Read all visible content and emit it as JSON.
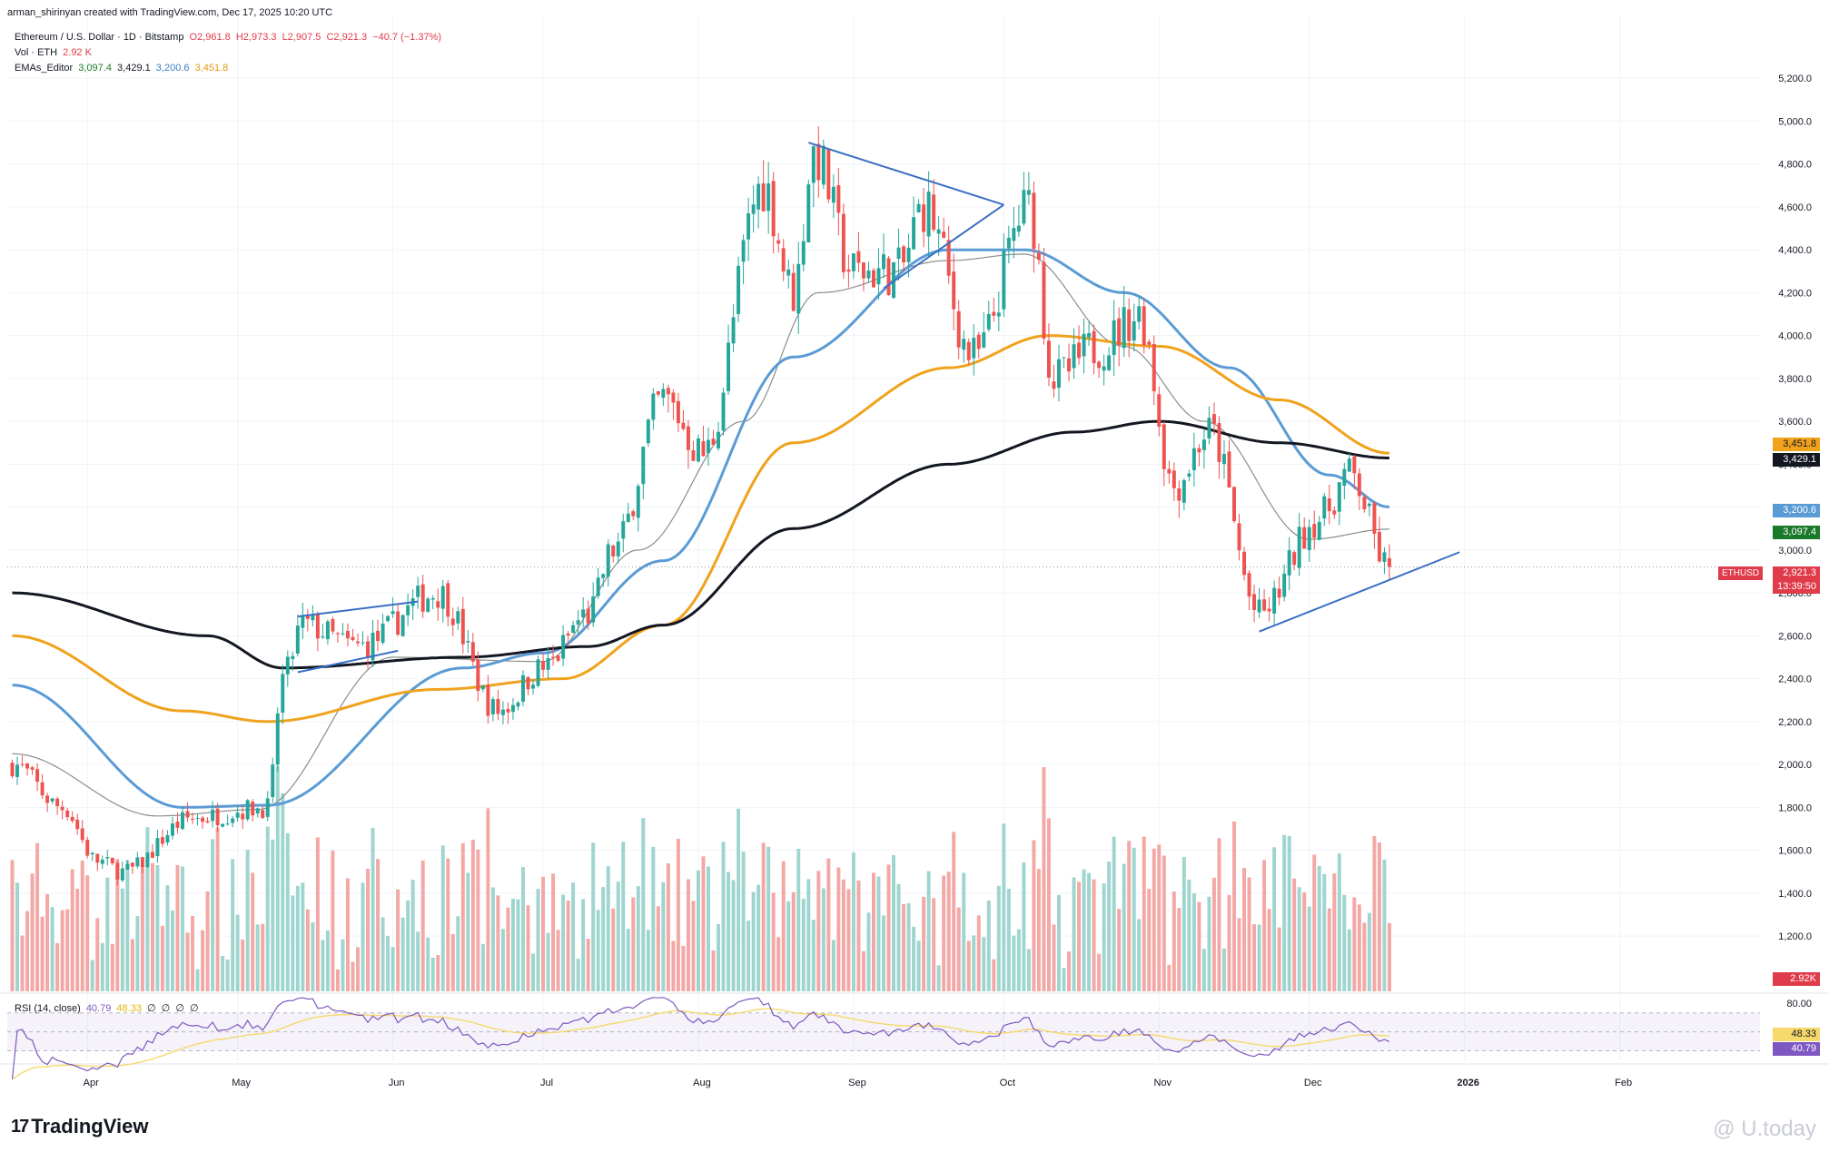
{
  "header": {
    "credit": "arman_shirinyan created with TradingView.com, Dec 17, 2025 10:20 UTC",
    "symbol": "Ethereum / U.S. Dollar · 1D · Bitstamp",
    "ohlc": {
      "open": "O2,961.8",
      "high": "H2,973.3",
      "low": "L2,907.5",
      "close": "C2,921.3",
      "change": "−40.7 (−1.37%)"
    },
    "volume_label": "Vol · ETH",
    "volume_value": "2.92 K",
    "ema_label": "EMAs_Editor",
    "ema_values": [
      "3,097.4",
      "3,429.1",
      "3,200.6",
      "3,451.8"
    ],
    "rsi_label": "RSI (14, close)",
    "rsi_values": [
      "40.79",
      "48.33",
      "∅",
      "∅",
      "∅",
      "∅"
    ]
  },
  "tags": {
    "ema100": "3,451.8",
    "ema200": "3,429.1",
    "ema50": "3,200.6",
    "ema20": "3,097.4",
    "symbol": "ETHUSD",
    "price": "2,921.3",
    "countdown": "13:39:50",
    "volume": "2.92K",
    "rsi_ma": "48.33",
    "rsi": "40.79"
  },
  "branding": {
    "logo": "TradingView",
    "watermark": "@ U.today"
  },
  "colors": {
    "up": "#26a69a",
    "down": "#ef5350",
    "up_vol": "#9fd5cf",
    "down_vol": "#f3a8a6",
    "ema20": "#8a8f8b",
    "ema50": "#5b9bd5",
    "ema100": "#f0a21c",
    "ema200": "#131722",
    "trend": "#3a6fc4",
    "rsi": "#7e57c2",
    "rsi_ma": "#f6d96b"
  },
  "chart_data": {
    "type": "candlestick",
    "y_axis_ticks": [
      "5,200.0",
      "5,000.0",
      "4,800.0",
      "4,600.0",
      "4,400.0",
      "4,200.0",
      "4,000.0",
      "3,800.0",
      "3,600.0",
      "3,400.0",
      "3,200.0",
      "3,000.0",
      "2,800.0",
      "2,600.0",
      "2,400.0",
      "2,200.0",
      "2,000.0",
      "1,800.0",
      "1,600.0",
      "1,400.0",
      "1,200.0"
    ],
    "x_axis_ticks": [
      "Apr",
      "May",
      "Jun",
      "Jul",
      "Aug",
      "Sep",
      "Oct",
      "Nov",
      "Dec",
      "2026",
      "Feb"
    ],
    "rsi_ticks": [
      "80.00"
    ],
    "price_path_anchors": [
      [
        "2025-03-17",
        2000
      ],
      [
        "2025-03-27",
        1800
      ],
      [
        "2025-04-03",
        1550
      ],
      [
        "2025-04-08",
        1500
      ],
      [
        "2025-04-22",
        1750
      ],
      [
        "2025-05-07",
        1800
      ],
      [
        "2025-05-10",
        2400
      ],
      [
        "2025-05-14",
        2650
      ],
      [
        "2025-05-25",
        2550
      ],
      [
        "2025-06-10",
        2800
      ],
      [
        "2025-06-22",
        2250
      ],
      [
        "2025-07-01",
        2450
      ],
      [
        "2025-07-10",
        2700
      ],
      [
        "2025-07-15",
        3000
      ],
      [
        "2025-07-25",
        3700
      ],
      [
        "2025-08-02",
        3450
      ],
      [
        "2025-08-14",
        4700
      ],
      [
        "2025-08-20",
        4200
      ],
      [
        "2025-08-24",
        4850
      ],
      [
        "2025-09-01",
        4300
      ],
      [
        "2025-09-10",
        4300
      ],
      [
        "2025-09-15",
        4600
      ],
      [
        "2025-09-25",
        3900
      ],
      [
        "2025-10-06",
        4600
      ],
      [
        "2025-10-11",
        3800
      ],
      [
        "2025-10-20",
        3950
      ],
      [
        "2025-10-28",
        4100
      ],
      [
        "2025-11-04",
        3300
      ],
      [
        "2025-11-11",
        3550
      ],
      [
        "2025-11-21",
        2700
      ],
      [
        "2025-12-03",
        3150
      ],
      [
        "2025-12-09",
        3350
      ],
      [
        "2025-12-17",
        2921
      ]
    ],
    "ema_anchors": {
      "ema20": [
        [
          "2025-03-17",
          2050
        ],
        [
          "2025-04-15",
          1760
        ],
        [
          "2025-05-05",
          1790
        ],
        [
          "2025-06-01",
          2500
        ],
        [
          "2025-07-01",
          2480
        ],
        [
          "2025-07-20",
          3000
        ],
        [
          "2025-08-10",
          3600
        ],
        [
          "2025-08-25",
          4200
        ],
        [
          "2025-09-20",
          4350
        ],
        [
          "2025-10-05",
          4380
        ],
        [
          "2025-10-25",
          3950
        ],
        [
          "2025-11-10",
          3600
        ],
        [
          "2025-12-01",
          3050
        ],
        [
          "2025-12-17",
          3097.4
        ]
      ],
      "ema50": [
        [
          "2025-03-17",
          2370
        ],
        [
          "2025-04-20",
          1800
        ],
        [
          "2025-05-07",
          1810
        ],
        [
          "2025-06-15",
          2450
        ],
        [
          "2025-07-01",
          2520
        ],
        [
          "2025-07-25",
          2950
        ],
        [
          "2025-08-20",
          3900
        ],
        [
          "2025-09-20",
          4400
        ],
        [
          "2025-10-05",
          4400
        ],
        [
          "2025-10-25",
          4200
        ],
        [
          "2025-11-15",
          3850
        ],
        [
          "2025-12-05",
          3350
        ],
        [
          "2025-12-17",
          3200.6
        ]
      ],
      "ema100": [
        [
          "2025-03-17",
          2600
        ],
        [
          "2025-04-20",
          2250
        ],
        [
          "2025-05-07",
          2200
        ],
        [
          "2025-06-10",
          2350
        ],
        [
          "2025-07-05",
          2400
        ],
        [
          "2025-07-25",
          2650
        ],
        [
          "2025-08-20",
          3500
        ],
        [
          "2025-09-20",
          3850
        ],
        [
          "2025-10-10",
          4000
        ],
        [
          "2025-11-01",
          3950
        ],
        [
          "2025-11-25",
          3700
        ],
        [
          "2025-12-17",
          3451.8
        ]
      ],
      "ema200": [
        [
          "2025-03-17",
          2800
        ],
        [
          "2025-04-25",
          2600
        ],
        [
          "2025-05-10",
          2450
        ],
        [
          "2025-06-15",
          2500
        ],
        [
          "2025-07-10",
          2550
        ],
        [
          "2025-07-25",
          2650
        ],
        [
          "2025-08-20",
          3100
        ],
        [
          "2025-09-20",
          3400
        ],
        [
          "2025-10-15",
          3550
        ],
        [
          "2025-11-01",
          3600
        ],
        [
          "2025-11-25",
          3500
        ],
        [
          "2025-12-17",
          3429.1
        ]
      ]
    },
    "trendlines": [
      {
        "name": "may-channel-upper",
        "from": [
          "2025-05-13",
          2690
        ],
        "to": [
          "2025-06-06",
          2760
        ]
      },
      {
        "name": "may-channel-lower",
        "from": [
          "2025-05-13",
          2430
        ],
        "to": [
          "2025-06-02",
          2530
        ]
      },
      {
        "name": "triangle-upper",
        "from": [
          "2025-08-23",
          4900
        ],
        "to": [
          "2025-10-01",
          4610
        ]
      },
      {
        "name": "triangle-lower",
        "from": [
          "2025-09-07",
          4220
        ],
        "to": [
          "2025-10-01",
          4610
        ]
      },
      {
        "name": "support-rising",
        "from": [
          "2025-11-21",
          2620
        ],
        "to": [
          "2025-12-31",
          2990
        ]
      }
    ],
    "last_price": 2921.3,
    "y_range": [
      1120,
      5260
    ],
    "x_range": [
      "2025-03-16",
      "2026-03-01"
    ]
  }
}
